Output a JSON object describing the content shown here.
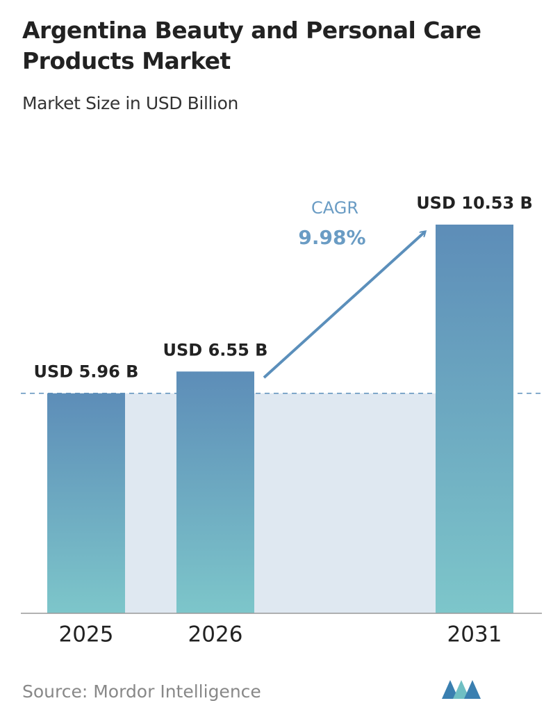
{
  "chart_data": {
    "type": "bar",
    "title": "Argentina Beauty and Personal Care Products Market",
    "subtitle": "Market Size in USD Billion",
    "categories": [
      "2025",
      "2026",
      "2031"
    ],
    "values": [
      5.96,
      6.55,
      10.53
    ],
    "value_labels": [
      "USD 5.96 B",
      "USD 6.55 B",
      "USD 10.53 B"
    ],
    "gradient": [
      "#5d8db8",
      "#7dc6ca"
    ],
    "annotations": {
      "cagr_label": "CAGR",
      "cagr_value": "9.98%"
    },
    "source": "Source: Mordor Intelligence"
  }
}
